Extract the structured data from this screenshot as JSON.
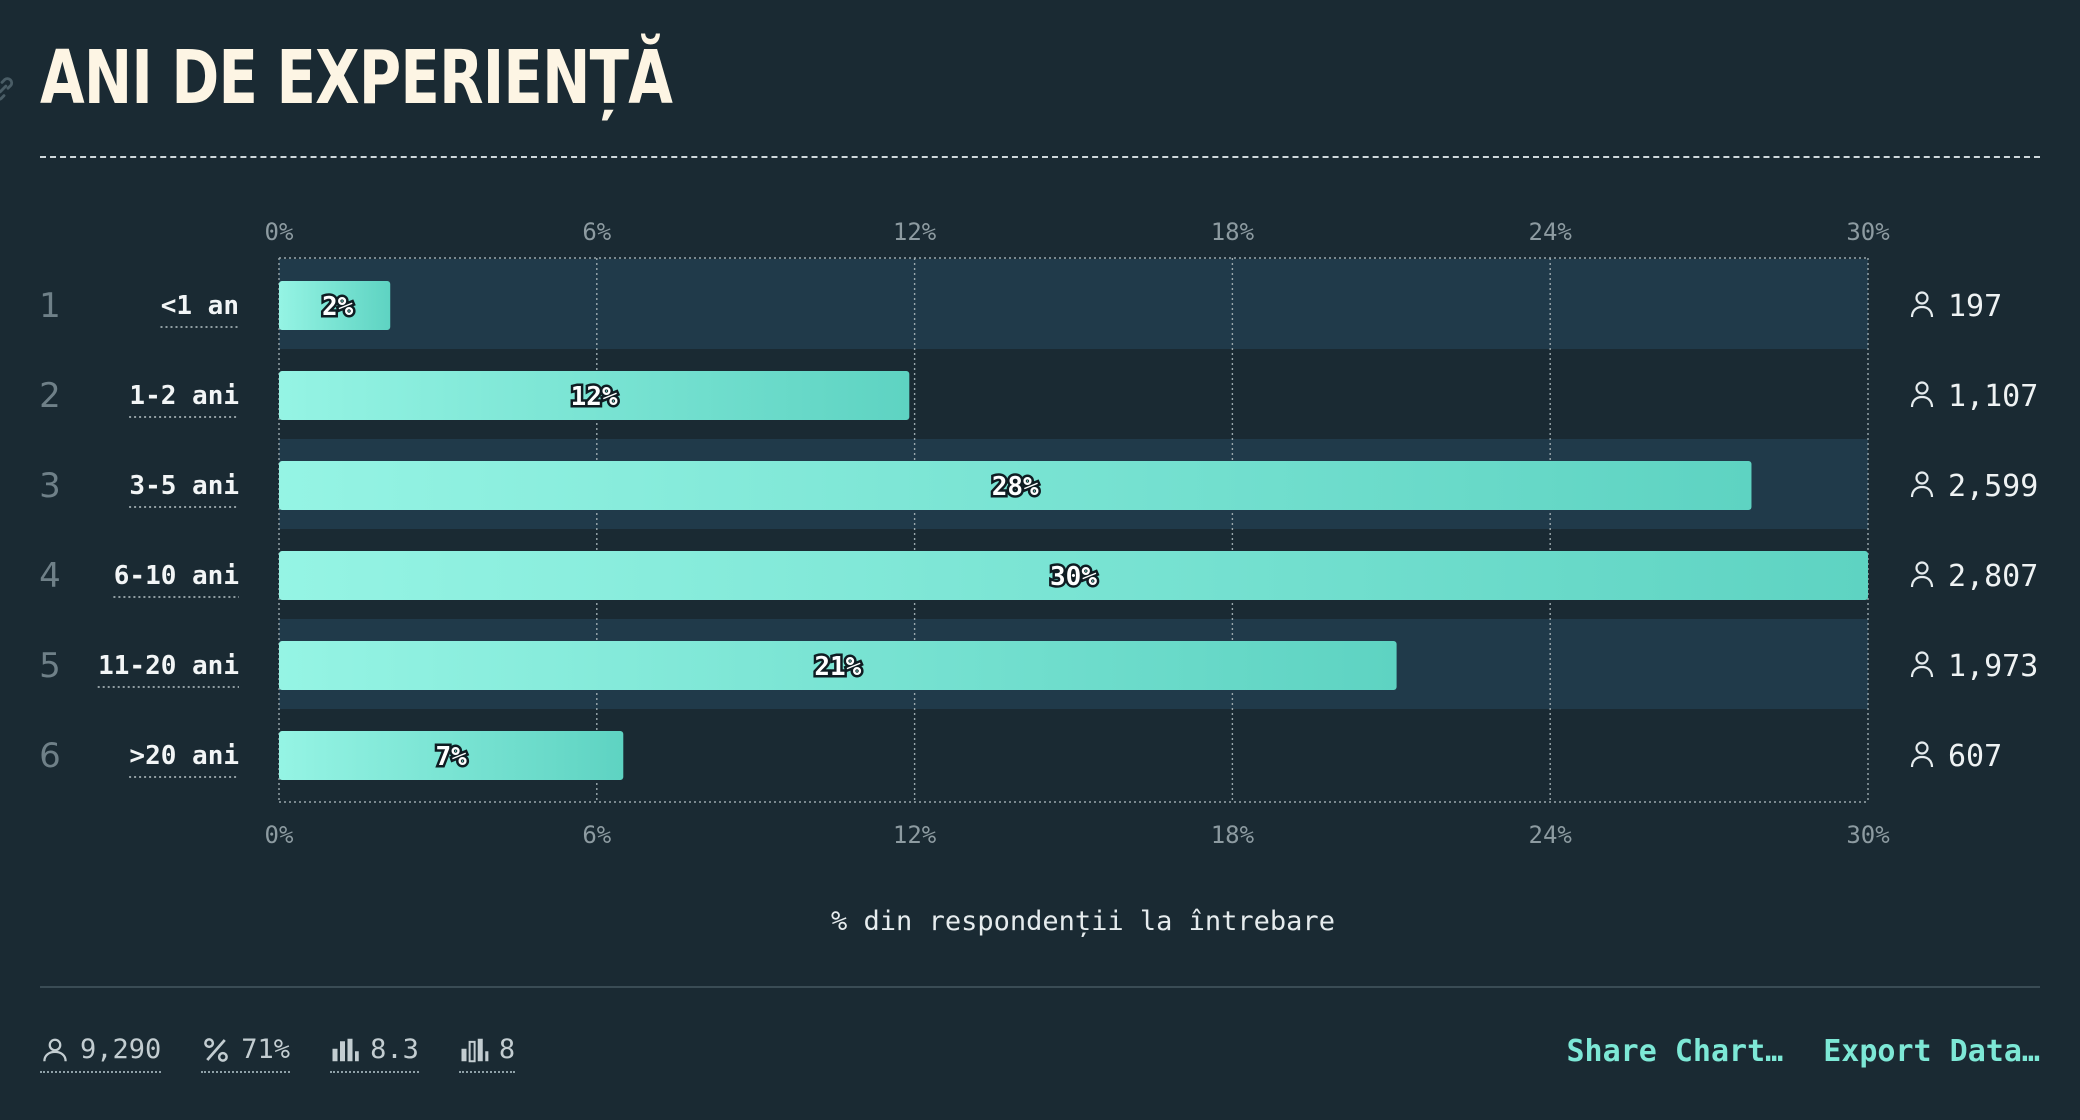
{
  "title": "ANI DE EXPERIENȚĂ",
  "colors": {
    "background": "#1a2a33",
    "band": "#203a4a",
    "bar_start": "#95f4e4",
    "bar_end": "#5ed3c2",
    "accent": "#7de8d6"
  },
  "icons": {
    "link": "link-icon",
    "respondents": "person-icon",
    "percent": "percent-icon",
    "average": "bar-chart-icon",
    "median": "bar-chart-outline-icon"
  },
  "chart_data": {
    "type": "bar",
    "orientation": "horizontal",
    "categories": [
      "<1 an",
      "1-2 ani",
      "3-5 ani",
      "6-10 ani",
      "11-20 ani",
      ">20 ani"
    ],
    "ranks": [
      "1",
      "2",
      "3",
      "4",
      "5",
      "6"
    ],
    "values": [
      2.1,
      11.9,
      27.8,
      30.0,
      21.1,
      6.5
    ],
    "value_labels": [
      "2%",
      "12%",
      "28%",
      "30%",
      "21%",
      "7%"
    ],
    "counts": [
      "197",
      "1,107",
      "2,599",
      "2,807",
      "1,973",
      "607"
    ],
    "xlim": [
      0,
      30
    ],
    "xticks": [
      "0%",
      "6%",
      "12%",
      "18%",
      "24%",
      "30%"
    ],
    "xlabel": "% din respondenții la întrebare",
    "grid": true
  },
  "stats": {
    "respondents": "9,290",
    "percent": "71%",
    "average": "8.3",
    "median": "8"
  },
  "actions": {
    "share": "Share Chart…",
    "export": "Export Data…"
  }
}
